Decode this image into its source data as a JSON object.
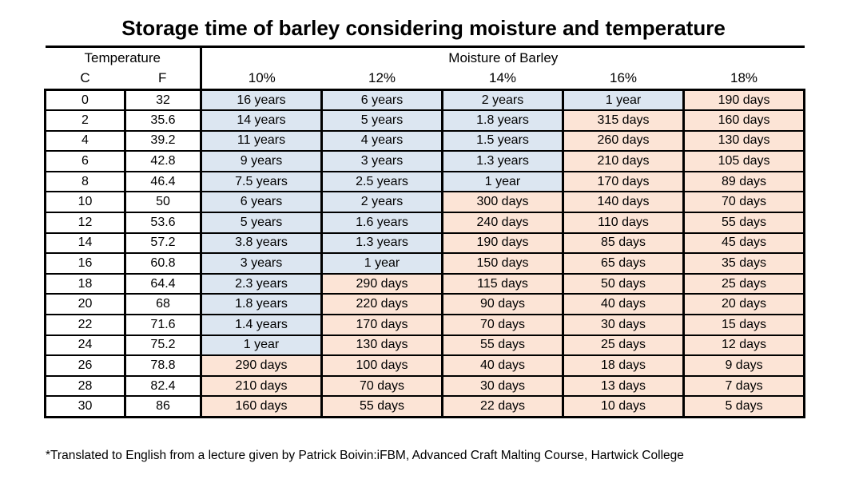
{
  "title": "Storage time of barley considering moisture and temperature",
  "footnote": "*Translated to English from a lecture given by Patrick Boivin:iFBM, Advanced Craft Malting Course, Hartwick College",
  "colors": {
    "year_cell": "#dce6f1",
    "day_cell": "#fce4d6",
    "border": "#000000",
    "background": "#ffffff"
  },
  "chart_data": {
    "type": "table",
    "title": "Storage time of barley considering moisture and temperature",
    "header_groups": [
      {
        "label": "Temperature",
        "span": 2
      },
      {
        "label": "Moisture of Barley",
        "span": 5
      }
    ],
    "columns": [
      "C",
      "F",
      "10%",
      "12%",
      "14%",
      "16%",
      "18%"
    ],
    "rows": [
      [
        "0",
        "32",
        "16 years",
        "6 years",
        "2 years",
        "1 year",
        "190 days"
      ],
      [
        "2",
        "35.6",
        "14 years",
        "5 years",
        "1.8 years",
        "315 days",
        "160 days"
      ],
      [
        "4",
        "39.2",
        "11 years",
        "4 years",
        "1.5 years",
        "260 days",
        "130 days"
      ],
      [
        "6",
        "42.8",
        "9 years",
        "3 years",
        "1.3 years",
        "210 days",
        "105 days"
      ],
      [
        "8",
        "46.4",
        "7.5 years",
        "2.5 years",
        "1 year",
        "170 days",
        "89 days"
      ],
      [
        "10",
        "50",
        "6 years",
        "2 years",
        "300 days",
        "140 days",
        "70 days"
      ],
      [
        "12",
        "53.6",
        "5 years",
        "1.6 years",
        "240 days",
        "110 days",
        "55 days"
      ],
      [
        "14",
        "57.2",
        "3.8 years",
        "1.3 years",
        "190 days",
        "85 days",
        "45 days"
      ],
      [
        "16",
        "60.8",
        "3 years",
        "1 year",
        "150 days",
        "65 days",
        "35 days"
      ],
      [
        "18",
        "64.4",
        "2.3 years",
        "290 days",
        "115 days",
        "50 days",
        "25 days"
      ],
      [
        "20",
        "68",
        "1.8 years",
        "220 days",
        "90 days",
        "40 days",
        "20 days"
      ],
      [
        "22",
        "71.6",
        "1.4 years",
        "170 days",
        "70 days",
        "30 days",
        "15 days"
      ],
      [
        "24",
        "75.2",
        "1 year",
        "130 days",
        "55 days",
        "25 days",
        "12 days"
      ],
      [
        "26",
        "78.8",
        "290 days",
        "100 days",
        "40 days",
        "18 days",
        "9 days"
      ],
      [
        "28",
        "82.4",
        "210 days",
        "70 days",
        "30 days",
        "13 days",
        "7 days"
      ],
      [
        "30",
        "86",
        "160 days",
        "55 days",
        "22 days",
        "10 days",
        "5 days"
      ]
    ]
  }
}
